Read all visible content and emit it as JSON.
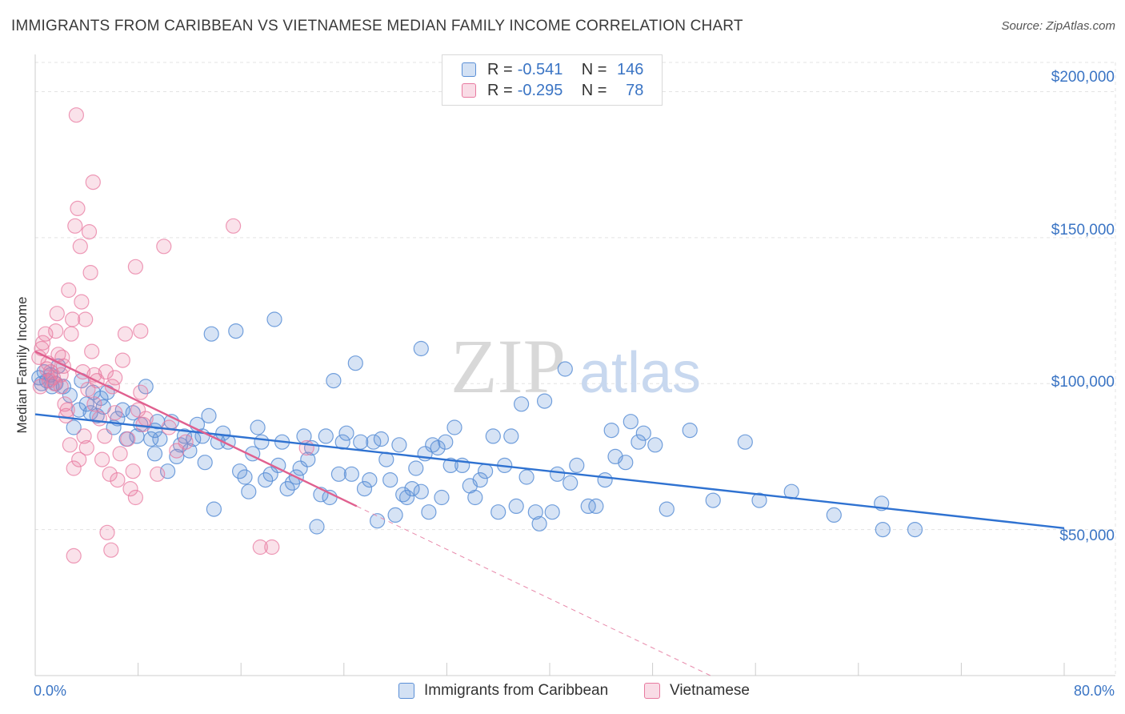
{
  "title": "IMMIGRANTS FROM CARIBBEAN VS VIETNAMESE MEDIAN FAMILY INCOME CORRELATION CHART",
  "source": "Source: ZipAtlas.com",
  "watermark": {
    "zip": "ZIP",
    "atlas": "atlas"
  },
  "legend": {
    "r_label": "R =",
    "n_label": "N =",
    "rows": [
      {
        "r": "-0.541",
        "n": "146",
        "color": "#5a8fd6"
      },
      {
        "r": "-0.295",
        "n": "78",
        "color": "#e87aa0"
      }
    ]
  },
  "bottom_legend": [
    "Immigrants from Caribbean",
    "Vietnamese"
  ],
  "chart_data": {
    "type": "scatter",
    "title": "IMMIGRANTS FROM CARIBBEAN VS VIETNAMESE MEDIAN FAMILY INCOME CORRELATION CHART",
    "xlabel": "",
    "ylabel": "Median Family Income",
    "xlim": [
      0,
      80
    ],
    "ylim": [
      0,
      210000
    ],
    "x_tick_labels": [
      "0.0%",
      "80.0%"
    ],
    "y_ticks": [
      50000,
      100000,
      150000,
      200000
    ],
    "y_tick_labels": [
      "$50,000",
      "$100,000",
      "$150,000",
      "$200,000"
    ],
    "grid": true,
    "legend_position": "top-center",
    "series": [
      {
        "name": "Immigrants from Caribbean",
        "color": "#5a8fd6",
        "trend": {
          "x": [
            0,
            80
          ],
          "y": [
            89500,
            50500
          ]
        },
        "points": [
          [
            0.3,
            102000
          ],
          [
            0.5,
            100000
          ],
          [
            0.7,
            104000
          ],
          [
            0.9,
            101000
          ],
          [
            1.2,
            103000
          ],
          [
            1.3,
            99000
          ],
          [
            1.6,
            100000
          ],
          [
            1.8,
            106000
          ],
          [
            2.2,
            99000
          ],
          [
            2.7,
            96000
          ],
          [
            3.0,
            85000
          ],
          [
            3.4,
            91000
          ],
          [
            3.6,
            101000
          ],
          [
            4.0,
            93000
          ],
          [
            4.3,
            90000
          ],
          [
            4.5,
            97000
          ],
          [
            4.8,
            89000
          ],
          [
            5.1,
            95000
          ],
          [
            5.3,
            92000
          ],
          [
            5.6,
            97000
          ],
          [
            6.1,
            85000
          ],
          [
            6.4,
            88000
          ],
          [
            6.8,
            91000
          ],
          [
            7.1,
            81000
          ],
          [
            7.6,
            90000
          ],
          [
            7.9,
            82000
          ],
          [
            8.2,
            86000
          ],
          [
            8.6,
            99000
          ],
          [
            9.0,
            81000
          ],
          [
            9.3,
            84000
          ],
          [
            9.5,
            87000
          ],
          [
            9.7,
            81000
          ],
          [
            10.3,
            70000
          ],
          [
            10.6,
            87000
          ],
          [
            11.0,
            75000
          ],
          [
            11.3,
            79000
          ],
          [
            11.6,
            82000
          ],
          [
            12.0,
            77000
          ],
          [
            12.3,
            81000
          ],
          [
            12.6,
            86000
          ],
          [
            13.0,
            82000
          ],
          [
            13.2,
            73000
          ],
          [
            13.5,
            89000
          ],
          [
            13.9,
            57000
          ],
          [
            14.2,
            80000
          ],
          [
            14.6,
            83000
          ],
          [
            15.0,
            80000
          ],
          [
            15.6,
            118000
          ],
          [
            15.9,
            70000
          ],
          [
            16.3,
            68000
          ],
          [
            16.6,
            63000
          ],
          [
            16.9,
            76000
          ],
          [
            17.3,
            85000
          ],
          [
            17.6,
            80000
          ],
          [
            17.9,
            67000
          ],
          [
            18.3,
            69000
          ],
          [
            18.6,
            122000
          ],
          [
            18.9,
            72000
          ],
          [
            19.2,
            80000
          ],
          [
            19.6,
            64000
          ],
          [
            20.0,
            66000
          ],
          [
            20.3,
            68000
          ],
          [
            20.6,
            71000
          ],
          [
            20.9,
            82000
          ],
          [
            21.2,
            74000
          ],
          [
            21.5,
            78000
          ],
          [
            21.9,
            51000
          ],
          [
            22.2,
            62000
          ],
          [
            22.6,
            82000
          ],
          [
            22.9,
            61000
          ],
          [
            23.2,
            101000
          ],
          [
            23.6,
            69000
          ],
          [
            23.9,
            80000
          ],
          [
            24.2,
            83000
          ],
          [
            24.6,
            69000
          ],
          [
            24.9,
            107000
          ],
          [
            25.3,
            80000
          ],
          [
            25.6,
            64000
          ],
          [
            26.0,
            67000
          ],
          [
            26.3,
            80000
          ],
          [
            26.6,
            53000
          ],
          [
            26.9,
            81000
          ],
          [
            27.3,
            74000
          ],
          [
            27.6,
            67000
          ],
          [
            28.0,
            55000
          ],
          [
            28.3,
            79000
          ],
          [
            28.6,
            62000
          ],
          [
            28.9,
            61000
          ],
          [
            29.3,
            64000
          ],
          [
            29.6,
            71000
          ],
          [
            30.0,
            63000
          ],
          [
            30.3,
            76000
          ],
          [
            30.6,
            56000
          ],
          [
            30.9,
            79000
          ],
          [
            31.3,
            78000
          ],
          [
            31.6,
            61000
          ],
          [
            31.9,
            80000
          ],
          [
            32.3,
            72000
          ],
          [
            32.6,
            85000
          ],
          [
            33.2,
            72000
          ],
          [
            33.8,
            65000
          ],
          [
            34.2,
            61000
          ],
          [
            34.6,
            67000
          ],
          [
            35.0,
            70000
          ],
          [
            35.6,
            82000
          ],
          [
            36.0,
            56000
          ],
          [
            36.5,
            72000
          ],
          [
            37.0,
            82000
          ],
          [
            37.4,
            58000
          ],
          [
            37.8,
            93000
          ],
          [
            38.2,
            68000
          ],
          [
            38.9,
            56000
          ],
          [
            39.2,
            52000
          ],
          [
            39.6,
            94000
          ],
          [
            40.2,
            56000
          ],
          [
            40.6,
            69000
          ],
          [
            41.2,
            105000
          ],
          [
            41.6,
            66000
          ],
          [
            42.1,
            72000
          ],
          [
            43.0,
            58000
          ],
          [
            43.6,
            58000
          ],
          [
            44.3,
            67000
          ],
          [
            44.8,
            84000
          ],
          [
            45.1,
            75000
          ],
          [
            45.9,
            73000
          ],
          [
            46.3,
            87000
          ],
          [
            46.9,
            80000
          ],
          [
            47.3,
            83000
          ],
          [
            48.2,
            79000
          ],
          [
            49.1,
            57000
          ],
          [
            50.9,
            84000
          ],
          [
            52.7,
            60000
          ],
          [
            55.2,
            80000
          ],
          [
            56.3,
            60000
          ],
          [
            58.8,
            63000
          ],
          [
            62.1,
            55000
          ],
          [
            65.8,
            59000
          ],
          [
            65.9,
            50000
          ],
          [
            68.4,
            50000
          ],
          [
            30.0,
            112000
          ],
          [
            13.7,
            117000
          ],
          [
            9.3,
            76000
          ]
        ]
      },
      {
        "name": "Vietnamese",
        "color": "#e87aa0",
        "trend": {
          "x": [
            0,
            25
          ],
          "y": [
            111000,
            58000
          ]
        },
        "trend_ext": {
          "x": [
            25,
            52.5
          ],
          "y": [
            58000,
            0
          ]
        },
        "points": [
          [
            0.3,
            109000
          ],
          [
            0.5,
            112000
          ],
          [
            0.6,
            114000
          ],
          [
            0.8,
            117000
          ],
          [
            0.9,
            105000
          ],
          [
            1.0,
            107000
          ],
          [
            1.2,
            104000
          ],
          [
            1.4,
            102000
          ],
          [
            1.5,
            100000
          ],
          [
            1.6,
            118000
          ],
          [
            1.7,
            124000
          ],
          [
            1.8,
            110000
          ],
          [
            2.0,
            99000
          ],
          [
            2.1,
            109000
          ],
          [
            2.2,
            106000
          ],
          [
            2.4,
            89000
          ],
          [
            2.5,
            91000
          ],
          [
            2.6,
            132000
          ],
          [
            2.7,
            79000
          ],
          [
            2.8,
            117000
          ],
          [
            2.9,
            122000
          ],
          [
            3.0,
            71000
          ],
          [
            3.1,
            154000
          ],
          [
            3.2,
            192000
          ],
          [
            3.3,
            160000
          ],
          [
            3.4,
            74000
          ],
          [
            3.5,
            147000
          ],
          [
            3.6,
            128000
          ],
          [
            3.7,
            104000
          ],
          [
            3.8,
            82000
          ],
          [
            3.9,
            122000
          ],
          [
            4.0,
            78000
          ],
          [
            4.1,
            98000
          ],
          [
            4.2,
            152000
          ],
          [
            4.3,
            138000
          ],
          [
            4.4,
            111000
          ],
          [
            4.5,
            169000
          ],
          [
            4.6,
            103000
          ],
          [
            4.8,
            101000
          ],
          [
            5.0,
            88000
          ],
          [
            5.2,
            74000
          ],
          [
            5.4,
            82000
          ],
          [
            5.6,
            49000
          ],
          [
            5.8,
            69000
          ],
          [
            5.9,
            43000
          ],
          [
            6.0,
            99000
          ],
          [
            6.2,
            90000
          ],
          [
            6.4,
            67000
          ],
          [
            6.6,
            76000
          ],
          [
            6.8,
            108000
          ],
          [
            7.0,
            117000
          ],
          [
            7.2,
            81000
          ],
          [
            7.4,
            64000
          ],
          [
            7.6,
            70000
          ],
          [
            7.8,
            61000
          ],
          [
            8.0,
            91000
          ],
          [
            8.2,
            97000
          ],
          [
            8.4,
            86000
          ],
          [
            8.6,
            88000
          ],
          [
            7.8,
            140000
          ],
          [
            8.2,
            118000
          ],
          [
            9.5,
            69000
          ],
          [
            10.0,
            147000
          ],
          [
            10.4,
            85000
          ],
          [
            11.0,
            77000
          ],
          [
            11.7,
            80000
          ],
          [
            15.4,
            154000
          ],
          [
            17.5,
            44000
          ],
          [
            18.4,
            44000
          ],
          [
            21.1,
            78000
          ],
          [
            3.0,
            41000
          ],
          [
            2.0,
            103000
          ],
          [
            1.1,
            101000
          ],
          [
            0.4,
            99000
          ],
          [
            4.6,
            93000
          ],
          [
            5.5,
            104000
          ],
          [
            6.2,
            102000
          ],
          [
            2.3,
            93000
          ]
        ]
      }
    ]
  }
}
